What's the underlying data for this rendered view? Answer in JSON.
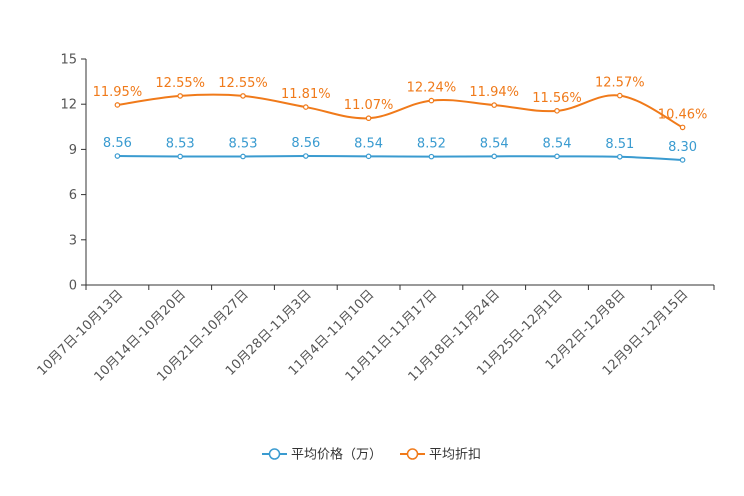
{
  "chart_data": {
    "type": "line",
    "title": "",
    "xlabel": "",
    "ylabel": "",
    "ylim": [
      0,
      15
    ],
    "yticks": [
      0,
      3,
      6,
      9,
      12,
      15
    ],
    "grid": false,
    "legend_position": "bottom-center",
    "categories": [
      "10月7日-10月13日",
      "10月14日-10月20日",
      "10月21日-10月27日",
      "10月28日-11月3日",
      "11月4日-11月10日",
      "11月11日-11月17日",
      "11月18日-11月24日",
      "11月25日-12月1日",
      "12月2日-12月8日",
      "12月9日-12月15日"
    ],
    "series": [
      {
        "name": "平均价格（万）",
        "color": "#3a9bd0",
        "values": [
          8.56,
          8.53,
          8.53,
          8.56,
          8.54,
          8.52,
          8.54,
          8.54,
          8.51,
          8.3
        ],
        "labels": [
          "8.56",
          "8.53",
          "8.53",
          "8.56",
          "8.54",
          "8.52",
          "8.54",
          "8.54",
          "8.51",
          "8.30"
        ]
      },
      {
        "name": "平均折扣",
        "color": "#f07a1a",
        "values": [
          11.95,
          12.55,
          12.55,
          11.81,
          11.07,
          12.24,
          11.94,
          11.56,
          12.57,
          10.46
        ],
        "labels": [
          "11.95%",
          "12.55%",
          "12.55%",
          "11.81%",
          "11.07%",
          "12.24%",
          "11.94%",
          "11.56%",
          "12.57%",
          "10.46%"
        ]
      }
    ]
  }
}
